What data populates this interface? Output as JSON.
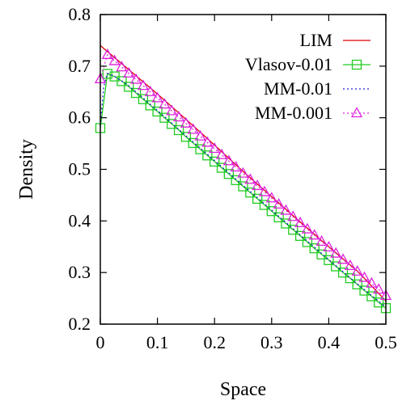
{
  "chart_data": {
    "type": "line",
    "title": "",
    "xlabel": "Space",
    "ylabel": "Density",
    "xlim": [
      0,
      0.5
    ],
    "ylim": [
      0.2,
      0.8
    ],
    "x_ticks": [
      "0",
      "0.1",
      "0.2",
      "0.3",
      "0.4",
      "0.5"
    ],
    "y_ticks": [
      "0.2",
      "0.3",
      "0.4",
      "0.5",
      "0.6",
      "0.7",
      "0.8"
    ],
    "x_tick_values": [
      0,
      0.1,
      0.2,
      0.3,
      0.4,
      0.5
    ],
    "y_tick_values": [
      0.2,
      0.3,
      0.4,
      0.5,
      0.6,
      0.7,
      0.8
    ],
    "grid": false,
    "legend_position": "top-right",
    "series": [
      {
        "name": "LIM",
        "color": "#dd0000",
        "style": "solid",
        "marker": "none",
        "x": [
          0,
          0.05,
          0.1,
          0.15,
          0.2,
          0.25,
          0.3,
          0.35,
          0.4,
          0.45,
          0.5
        ],
        "y": [
          0.74,
          0.693,
          0.646,
          0.597,
          0.547,
          0.496,
          0.447,
          0.398,
          0.35,
          0.303,
          0.245
        ]
      },
      {
        "name": "Vlasov-0.01",
        "color": "#22cc22",
        "style": "solid",
        "marker": "square",
        "x": [
          0,
          0.0125,
          0.025,
          0.0375,
          0.05,
          0.0625,
          0.075,
          0.0875,
          0.1,
          0.1125,
          0.125,
          0.1375,
          0.15,
          0.1625,
          0.175,
          0.1875,
          0.2,
          0.2125,
          0.225,
          0.2375,
          0.25,
          0.2625,
          0.275,
          0.2875,
          0.3,
          0.3125,
          0.325,
          0.3375,
          0.35,
          0.3625,
          0.375,
          0.3875,
          0.4,
          0.4125,
          0.425,
          0.4375,
          0.45,
          0.4625,
          0.475,
          0.4875,
          0.5
        ],
        "y": [
          0.58,
          0.685,
          0.68,
          0.671,
          0.66,
          0.648,
          0.636,
          0.624,
          0.612,
          0.6,
          0.588,
          0.576,
          0.563,
          0.551,
          0.539,
          0.527,
          0.515,
          0.503,
          0.491,
          0.479,
          0.467,
          0.455,
          0.443,
          0.431,
          0.419,
          0.407,
          0.395,
          0.383,
          0.371,
          0.359,
          0.347,
          0.335,
          0.324,
          0.312,
          0.3,
          0.289,
          0.277,
          0.265,
          0.254,
          0.242,
          0.231
        ]
      },
      {
        "name": "MM-0.01",
        "color": "#2222cc",
        "style": "dotted",
        "marker": "none",
        "x": [
          0,
          0.006,
          0.0125,
          0.025,
          0.05,
          0.1,
          0.15,
          0.2,
          0.25,
          0.3,
          0.35,
          0.4,
          0.45,
          0.5
        ],
        "y": [
          0.585,
          0.66,
          0.686,
          0.68,
          0.662,
          0.614,
          0.565,
          0.517,
          0.469,
          0.421,
          0.373,
          0.325,
          0.278,
          0.233
        ]
      },
      {
        "name": "MM-0.001",
        "color": "#dd22dd",
        "style": "dotted",
        "marker": "triangle",
        "x": [
          0,
          0.0125,
          0.025,
          0.0375,
          0.05,
          0.0625,
          0.075,
          0.0875,
          0.1,
          0.1125,
          0.125,
          0.1375,
          0.15,
          0.1625,
          0.175,
          0.1875,
          0.2,
          0.2125,
          0.225,
          0.2375,
          0.25,
          0.2625,
          0.275,
          0.2875,
          0.3,
          0.3125,
          0.325,
          0.3375,
          0.35,
          0.3625,
          0.375,
          0.3875,
          0.4,
          0.4125,
          0.425,
          0.4375,
          0.45,
          0.4625,
          0.475,
          0.4875,
          0.5
        ],
        "y": [
          0.675,
          0.722,
          0.71,
          0.698,
          0.686,
          0.674,
          0.662,
          0.65,
          0.638,
          0.626,
          0.613,
          0.601,
          0.589,
          0.577,
          0.564,
          0.552,
          0.54,
          0.528,
          0.516,
          0.504,
          0.492,
          0.48,
          0.468,
          0.456,
          0.444,
          0.432,
          0.42,
          0.408,
          0.396,
          0.384,
          0.372,
          0.36,
          0.349,
          0.337,
          0.325,
          0.313,
          0.302,
          0.29,
          0.279,
          0.267,
          0.255
        ]
      }
    ]
  }
}
